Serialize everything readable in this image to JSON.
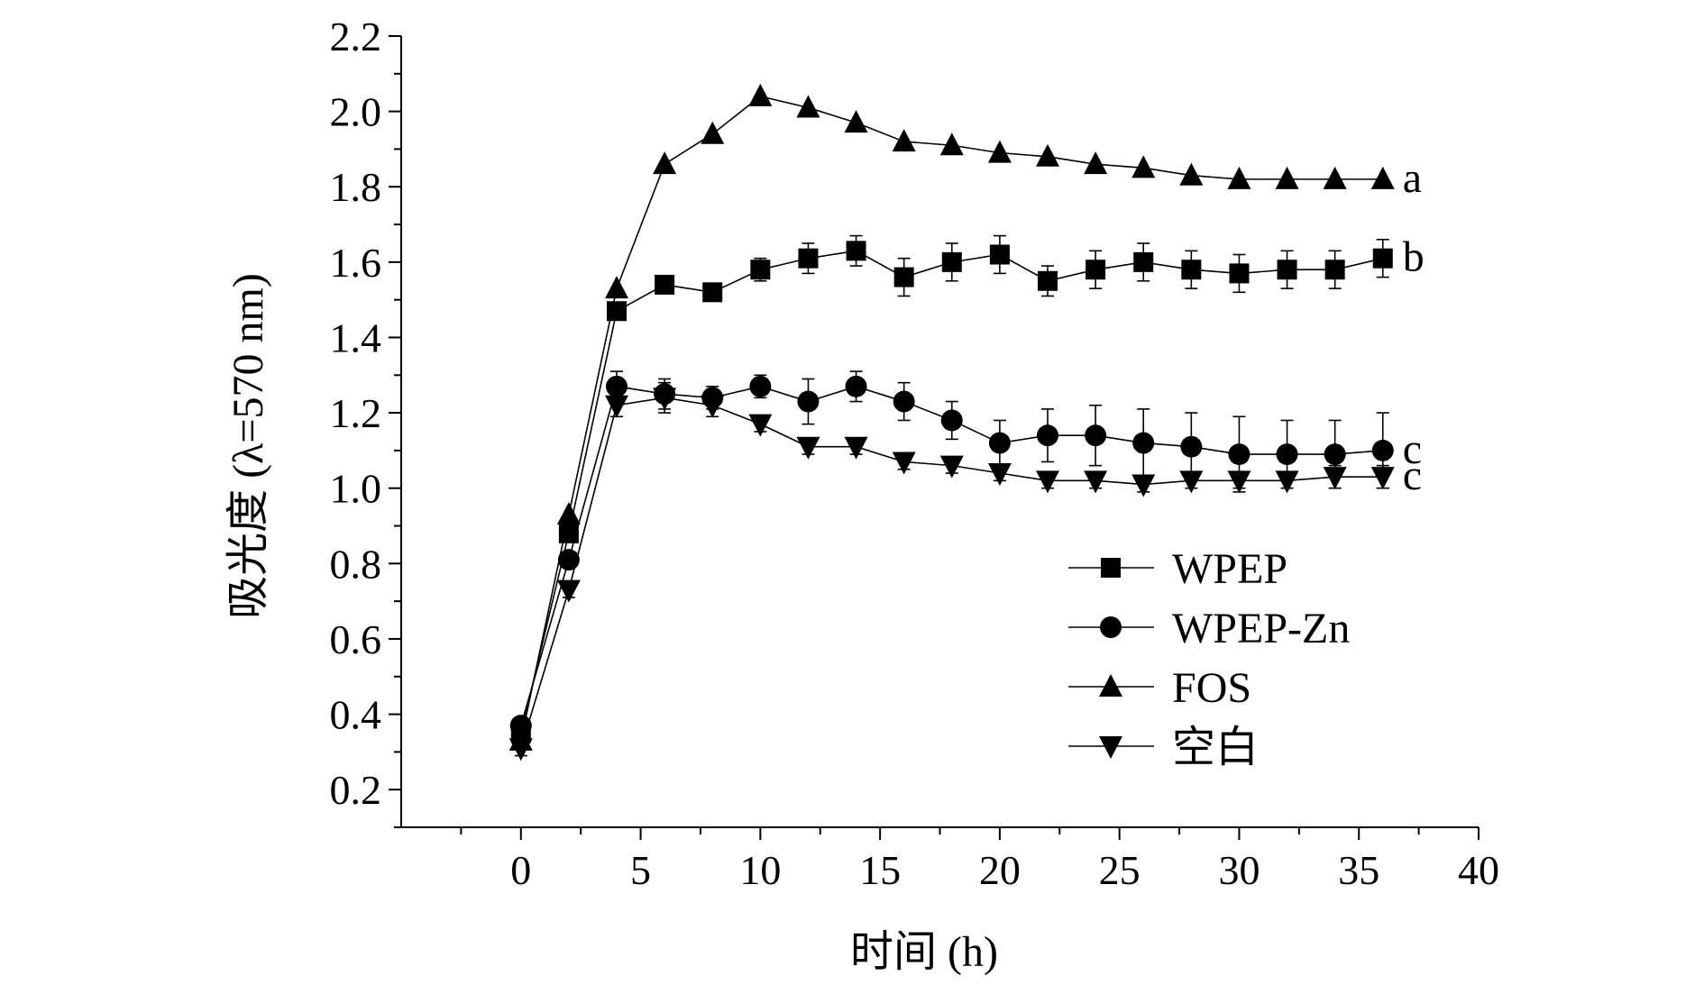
{
  "chart_data": {
    "type": "line",
    "title": "",
    "xlabel": "时间 (h)",
    "ylabel": "吸光度 (λ=570 nm)",
    "xlim": [
      -5,
      40
    ],
    "ylim": [
      0.1,
      2.2
    ],
    "x_ticks": [
      0,
      5,
      10,
      15,
      20,
      25,
      30,
      35,
      40
    ],
    "y_ticks": [
      0.2,
      0.4,
      0.6,
      0.8,
      1.0,
      1.2,
      1.4,
      1.6,
      1.8,
      2.0,
      2.2
    ],
    "x_tick_labels": [
      "0",
      "5",
      "10",
      "15",
      "20",
      "25",
      "30",
      "35",
      "40"
    ],
    "y_tick_labels": [
      "0.2",
      "0.4",
      "0.6",
      "0.8",
      "1.0",
      "1.2",
      "1.4",
      "1.6",
      "1.8",
      "2.0",
      "2.2"
    ],
    "x": [
      0,
      2,
      4,
      6,
      8,
      10,
      12,
      14,
      16,
      18,
      20,
      22,
      24,
      26,
      28,
      30,
      32,
      34,
      36
    ],
    "legend_position": "lower-right",
    "series": [
      {
        "name": "WPEP",
        "marker": "square",
        "values": [
          0.35,
          0.88,
          1.47,
          1.54,
          1.52,
          1.58,
          1.61,
          1.63,
          1.56,
          1.6,
          1.62,
          1.55,
          1.58,
          1.6,
          1.58,
          1.57,
          1.58,
          1.58,
          1.61
        ],
        "errors": [
          0.02,
          0.02,
          0.02,
          0.01,
          0.02,
          0.03,
          0.04,
          0.04,
          0.05,
          0.05,
          0.05,
          0.04,
          0.05,
          0.05,
          0.05,
          0.05,
          0.05,
          0.05,
          0.05
        ],
        "group_label": "b"
      },
      {
        "name": "WPEP-Zn",
        "marker": "circle",
        "values": [
          0.37,
          0.81,
          1.27,
          1.25,
          1.24,
          1.27,
          1.23,
          1.27,
          1.23,
          1.18,
          1.12,
          1.14,
          1.14,
          1.12,
          1.11,
          1.09,
          1.09,
          1.09,
          1.1
        ],
        "errors": [
          0.02,
          0.02,
          0.04,
          0.04,
          0.03,
          0.03,
          0.06,
          0.04,
          0.05,
          0.05,
          0.06,
          0.07,
          0.08,
          0.09,
          0.09,
          0.1,
          0.09,
          0.09,
          0.1
        ],
        "group_label": "c"
      },
      {
        "name": "FOS",
        "marker": "triangle-up",
        "values": [
          0.33,
          0.93,
          1.53,
          1.86,
          1.94,
          2.04,
          2.01,
          1.97,
          1.92,
          1.91,
          1.89,
          1.88,
          1.86,
          1.85,
          1.83,
          1.82,
          1.82,
          1.82,
          1.82
        ],
        "errors": [
          0.01,
          0.01,
          0.01,
          0.01,
          0.01,
          0.01,
          0.01,
          0.01,
          0.01,
          0.01,
          0.01,
          0.01,
          0.01,
          0.01,
          0.01,
          0.01,
          0.01,
          0.01,
          0.01
        ],
        "group_label": "a"
      },
      {
        "name": "空白",
        "marker": "triangle-down",
        "values": [
          0.31,
          0.73,
          1.22,
          1.24,
          1.22,
          1.17,
          1.11,
          1.11,
          1.07,
          1.06,
          1.04,
          1.02,
          1.02,
          1.01,
          1.02,
          1.02,
          1.02,
          1.03,
          1.03
        ],
        "errors": [
          0.02,
          0.02,
          0.03,
          0.04,
          0.03,
          0.02,
          0.02,
          0.02,
          0.02,
          0.02,
          0.02,
          0.02,
          0.02,
          0.02,
          0.02,
          0.02,
          0.02,
          0.03,
          0.03
        ],
        "group_label": "c"
      }
    ]
  }
}
